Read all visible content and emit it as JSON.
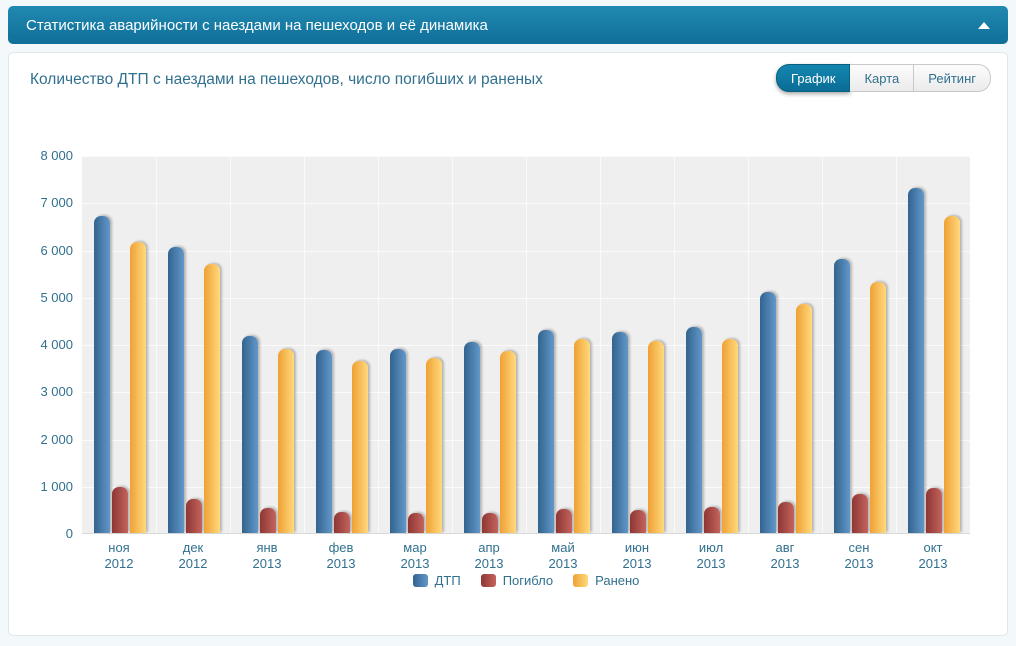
{
  "panel": {
    "title": "Статистика аварийности с наездами на пешеходов и её динамика"
  },
  "card": {
    "title": "Количество ДТП с наездами на пешеходов, число погибших и раненых",
    "tabs": [
      {
        "label": "График",
        "active": true
      },
      {
        "label": "Карта",
        "active": false
      },
      {
        "label": "Рейтинг",
        "active": false
      }
    ]
  },
  "colors": {
    "header_bg": "#15789f",
    "page_bg": "#f3f8fa",
    "accent_blue": "#0d7eab",
    "text_blue": "#31708f",
    "plot_bg": "#efefef",
    "series_dtp": "#4679a9",
    "series_pogiblo": "#a4443f",
    "series_raneno": "#f8b94d"
  },
  "chart_data": {
    "type": "bar",
    "title": "Количество ДТП с наездами на пешеходов, число погибших и раненых",
    "categories": [
      {
        "month": "ноя",
        "year": "2012"
      },
      {
        "month": "дек",
        "year": "2012"
      },
      {
        "month": "янв",
        "year": "2013"
      },
      {
        "month": "фев",
        "year": "2013"
      },
      {
        "month": "мар",
        "year": "2013"
      },
      {
        "month": "апр",
        "year": "2013"
      },
      {
        "month": "май",
        "year": "2013"
      },
      {
        "month": "июн",
        "year": "2013"
      },
      {
        "month": "июл",
        "year": "2013"
      },
      {
        "month": "авг",
        "year": "2013"
      },
      {
        "month": "сен",
        "year": "2013"
      },
      {
        "month": "окт",
        "year": "2013"
      }
    ],
    "series": [
      {
        "name": "ДТП",
        "color": "#4679a9",
        "values": [
          6700,
          6050,
          4180,
          3870,
          3900,
          4040,
          4300,
          4260,
          4350,
          5100,
          5800,
          7300
        ]
      },
      {
        "name": "Погибло",
        "color": "#a4443f",
        "values": [
          970,
          720,
          520,
          450,
          420,
          420,
          500,
          480,
          560,
          660,
          830,
          950
        ]
      },
      {
        "name": "Ранено",
        "color": "#f8b94d",
        "values": [
          6150,
          5700,
          3900,
          3650,
          3700,
          3860,
          4100,
          4070,
          4110,
          4850,
          5320,
          6700
        ]
      }
    ],
    "ylim": [
      0,
      8000
    ],
    "ytick_step": 1000,
    "ytick_labels": [
      "0",
      "1 000",
      "2 000",
      "3 000",
      "4 000",
      "5 000",
      "6 000",
      "7 000",
      "8 000"
    ],
    "grid": true,
    "legend_position": "bottom"
  }
}
